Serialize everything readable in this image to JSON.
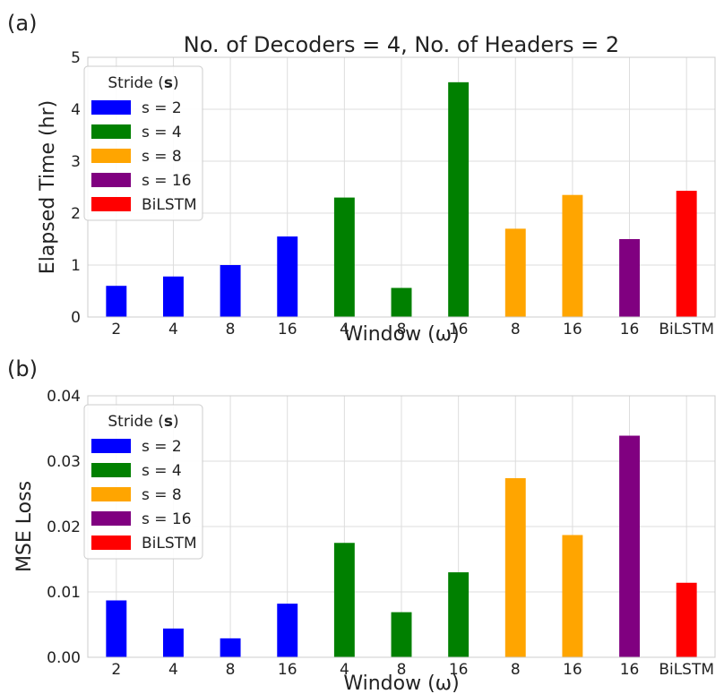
{
  "chart_data": [
    {
      "panel_label": "(a)",
      "type": "bar",
      "title": "No. of Decoders = 4, No. of Headers = 2",
      "xlabel": "Window (ω)",
      "ylabel": "Elapsed Time (hr)",
      "ylim": [
        0,
        5
      ],
      "yticks": [
        "0",
        "1",
        "2",
        "3",
        "4",
        "5"
      ],
      "grid": true,
      "categories": [
        "2",
        "4",
        "8",
        "16",
        "4",
        "8",
        "16",
        "8",
        "16",
        "16",
        "BiLSTM"
      ],
      "values": [
        0.6,
        0.78,
        1.0,
        1.55,
        2.3,
        0.56,
        4.52,
        1.7,
        2.35,
        1.5,
        2.43
      ],
      "bar_series": [
        "s = 2",
        "s = 2",
        "s = 2",
        "s = 2",
        "s = 4",
        "s = 4",
        "s = 4",
        "s = 8",
        "s = 8",
        "s = 16",
        "BiLSTM"
      ],
      "legend": {
        "title": "Stride (s)",
        "placement": "top-left",
        "entries": [
          {
            "name": "s = 2",
            "color": "#0000ff"
          },
          {
            "name": "s = 4",
            "color": "#008000"
          },
          {
            "name": "s = 8",
            "color": "#ffa500"
          },
          {
            "name": "s = 16",
            "color": "#800080"
          },
          {
            "name": "BiLSTM",
            "color": "#ff0000"
          }
        ]
      }
    },
    {
      "panel_label": "(b)",
      "type": "bar",
      "title": "",
      "xlabel": "Window (ω)",
      "ylabel": "MSE Loss",
      "ylim": [
        0,
        0.04
      ],
      "yticks": [
        "0.00",
        "0.01",
        "0.02",
        "0.03",
        "0.04"
      ],
      "grid": true,
      "categories": [
        "2",
        "4",
        "8",
        "16",
        "4",
        "8",
        "16",
        "8",
        "16",
        "16",
        "BiLSTM"
      ],
      "values": [
        0.0087,
        0.0044,
        0.0029,
        0.0082,
        0.0175,
        0.0069,
        0.013,
        0.0274,
        0.0187,
        0.0339,
        0.0114
      ],
      "bar_series": [
        "s = 2",
        "s = 2",
        "s = 2",
        "s = 2",
        "s = 4",
        "s = 4",
        "s = 4",
        "s = 8",
        "s = 8",
        "s = 16",
        "BiLSTM"
      ],
      "legend": {
        "title": "Stride (s)",
        "placement": "top-left",
        "entries": [
          {
            "name": "s = 2",
            "color": "#0000ff"
          },
          {
            "name": "s = 4",
            "color": "#008000"
          },
          {
            "name": "s = 8",
            "color": "#ffa500"
          },
          {
            "name": "s = 16",
            "color": "#800080"
          },
          {
            "name": "BiLSTM",
            "color": "#ff0000"
          }
        ]
      }
    }
  ]
}
